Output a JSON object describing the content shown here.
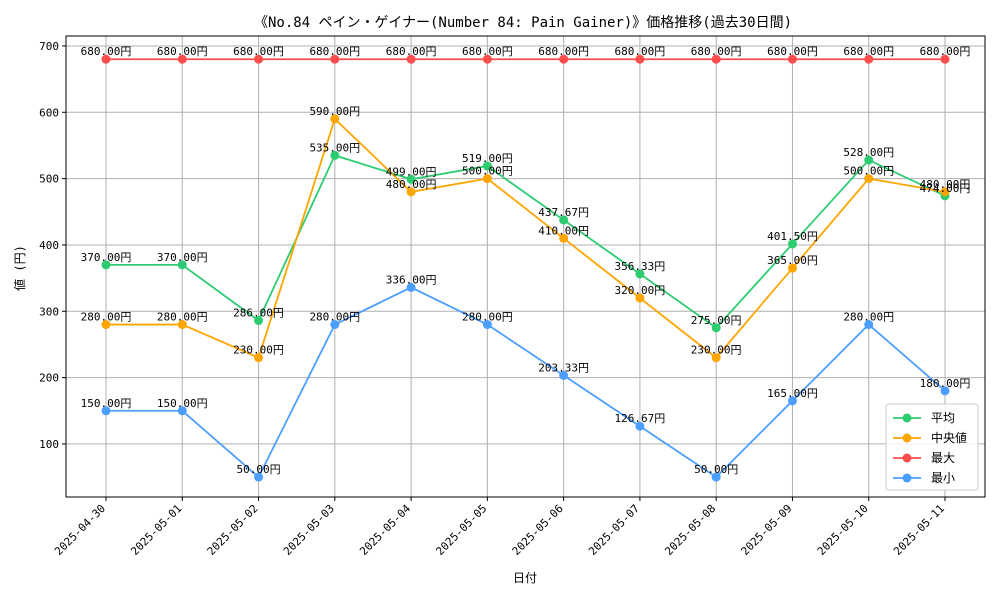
{
  "chart_data": {
    "type": "line",
    "title": "《No.84 ペイン・ゲイナー(Number 84: Pain Gainer)》価格推移(過去30日間)",
    "xlabel": "日付",
    "ylabel": "値 (円)",
    "ylim": [
      20,
      715
    ],
    "yticks": [
      100,
      200,
      300,
      400,
      500,
      600,
      700
    ],
    "grid": true,
    "legend_position": "bottom-right",
    "value_suffix": "円",
    "categories": [
      "2025-04-30",
      "2025-05-01",
      "2025-05-02",
      "2025-05-03",
      "2025-05-04",
      "2025-05-05",
      "2025-05-06",
      "2025-05-07",
      "2025-05-08",
      "2025-05-09",
      "2025-05-10",
      "2025-05-11"
    ],
    "series": [
      {
        "name": "平均",
        "color": "#2ecc71",
        "values": [
          370.0,
          370.0,
          286.0,
          535.0,
          499.0,
          519.0,
          437.67,
          356.33,
          275.0,
          401.5,
          528.0,
          474.0
        ]
      },
      {
        "name": "中央値",
        "color": "#ffa500",
        "values": [
          280.0,
          280.0,
          230.0,
          590.0,
          480.0,
          500.0,
          410.0,
          320.0,
          230.0,
          365.0,
          500.0,
          480.0
        ]
      },
      {
        "name": "最大",
        "color": "#ff4d4d",
        "values": [
          680.0,
          680.0,
          680.0,
          680.0,
          680.0,
          680.0,
          680.0,
          680.0,
          680.0,
          680.0,
          680.0,
          680.0
        ]
      },
      {
        "name": "最小",
        "color": "#4d9fff",
        "values": [
          150.0,
          150.0,
          50.0,
          280.0,
          336.0,
          280.0,
          203.33,
          126.67,
          50.0,
          165.0,
          280.0,
          180.0
        ]
      }
    ]
  }
}
